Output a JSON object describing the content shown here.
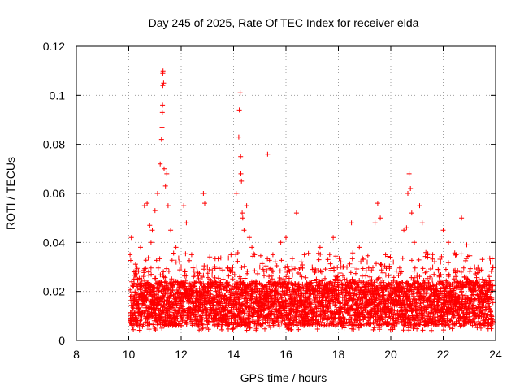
{
  "chart_data": {
    "type": "scatter",
    "title": "Day 245 of 2025, Rate Of TEC Index for receiver elda",
    "xlabel": "GPS time / hours",
    "ylabel": "ROTI / TECUs",
    "xlim": [
      8,
      24
    ],
    "ylim": [
      0,
      0.12
    ],
    "xticks": [
      8,
      10,
      12,
      14,
      16,
      18,
      20,
      22,
      24
    ],
    "xtick_labels": [
      "8",
      "10",
      "12",
      "14",
      "16",
      "18",
      "20",
      "22",
      "24"
    ],
    "yticks": [
      0,
      0.02,
      0.04,
      0.06,
      0.08,
      0.1,
      0.12
    ],
    "ytick_labels": [
      "0",
      "0.02",
      "0.04",
      "0.06",
      "0.08",
      "0.1",
      "0.12"
    ],
    "grid": true,
    "marker": "plus",
    "color": "#ff0000",
    "series": [
      {
        "name": "ROTI",
        "note": "dense cloud of points between 10 h and 24 h, mostly 0.005-0.03 TECU",
        "x": [
          10.05,
          10.1,
          10.2,
          10.3,
          10.45,
          10.6,
          10.7,
          10.8,
          10.85,
          10.9,
          11.0,
          11.1,
          11.2,
          11.25,
          11.27,
          11.28,
          11.29,
          11.3,
          11.3,
          11.31,
          11.33,
          11.35,
          11.4,
          11.45,
          11.5,
          11.6,
          11.8,
          12.0,
          12.1,
          12.2,
          12.4,
          12.6,
          12.85,
          12.9,
          13.0,
          13.3,
          13.6,
          13.9,
          14.1,
          14.2,
          14.22,
          14.25,
          14.27,
          14.28,
          14.3,
          14.33,
          14.35,
          14.4,
          14.5,
          14.6,
          14.7,
          14.8,
          15.0,
          15.3,
          15.5,
          15.8,
          16.0,
          16.4,
          16.7,
          17.0,
          17.3,
          17.6,
          17.8,
          18.1,
          18.5,
          18.8,
          19.1,
          19.4,
          19.5,
          19.6,
          19.8,
          20.1,
          20.4,
          20.5,
          20.6,
          20.65,
          20.7,
          20.75,
          20.8,
          20.9,
          21.1,
          21.2,
          21.4,
          21.6,
          21.9,
          22.0,
          22.2,
          22.5,
          22.7,
          22.9,
          23.2,
          23.5,
          23.8,
          23.9
        ],
        "y": [
          0.035,
          0.042,
          0.028,
          0.03,
          0.038,
          0.055,
          0.056,
          0.047,
          0.04,
          0.045,
          0.053,
          0.06,
          0.072,
          0.082,
          0.087,
          0.093,
          0.096,
          0.104,
          0.109,
          0.11,
          0.105,
          0.07,
          0.063,
          0.068,
          0.055,
          0.045,
          0.038,
          0.03,
          0.055,
          0.048,
          0.035,
          0.03,
          0.06,
          0.056,
          0.03,
          0.022,
          0.025,
          0.035,
          0.06,
          0.083,
          0.094,
          0.101,
          0.075,
          0.068,
          0.065,
          0.052,
          0.05,
          0.045,
          0.055,
          0.042,
          0.038,
          0.035,
          0.03,
          0.076,
          0.035,
          0.04,
          0.042,
          0.052,
          0.035,
          0.03,
          0.038,
          0.033,
          0.042,
          0.03,
          0.048,
          0.038,
          0.032,
          0.048,
          0.056,
          0.05,
          0.035,
          0.032,
          0.028,
          0.045,
          0.046,
          0.06,
          0.068,
          0.062,
          0.052,
          0.04,
          0.055,
          0.048,
          0.035,
          0.03,
          0.032,
          0.045,
          0.04,
          0.035,
          0.05,
          0.039,
          0.03,
          0.025,
          0.032,
          0.03
        ]
      }
    ]
  }
}
